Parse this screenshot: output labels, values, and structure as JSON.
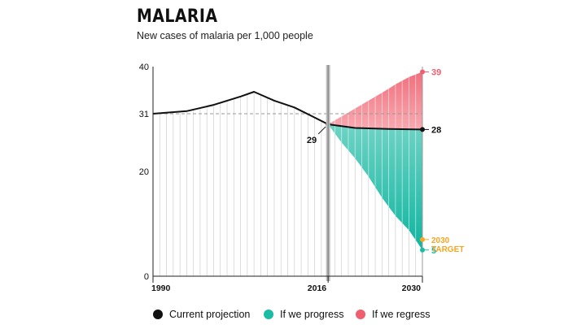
{
  "chart_data": {
    "type": "line",
    "title": "MALARIA",
    "subtitle": "New cases of malaria per 1,000 people",
    "x_ticks": [
      "1990",
      "2016",
      "2030"
    ],
    "y_ticks": [
      0,
      20,
      31,
      40
    ],
    "xlim": [
      1990,
      2030
    ],
    "ylim": [
      0,
      40
    ],
    "reference_line": 31,
    "series": [
      {
        "name": "Current projection",
        "color": "#111111",
        "points": [
          [
            1990,
            31
          ],
          [
            1995,
            31.5
          ],
          [
            1999,
            32.7
          ],
          [
            2003,
            34.3
          ],
          [
            2005,
            35.2
          ],
          [
            2008,
            33.5
          ],
          [
            2011,
            32.2
          ],
          [
            2016,
            29
          ],
          [
            2020,
            28.3
          ],
          [
            2025,
            28.1
          ],
          [
            2030,
            28
          ]
        ]
      },
      {
        "name": "If we progress",
        "color": "#1bbca6",
        "points": [
          [
            2016,
            29
          ],
          [
            2018,
            25.5
          ],
          [
            2020,
            22.5
          ],
          [
            2022,
            19
          ],
          [
            2024,
            15
          ],
          [
            2026,
            11.5
          ],
          [
            2028,
            8.8
          ],
          [
            2030,
            5
          ]
        ]
      },
      {
        "name": "If we regress",
        "color": "#ef5f6e",
        "points": [
          [
            2016,
            29
          ],
          [
            2018,
            30.5
          ],
          [
            2020,
            32
          ],
          [
            2022,
            33.5
          ],
          [
            2024,
            35
          ],
          [
            2026,
            36.6
          ],
          [
            2028,
            38
          ],
          [
            2030,
            39
          ]
        ]
      }
    ],
    "annotations": {
      "start_value": "29",
      "current_end": "28",
      "regress_end": "39",
      "progress_end": "5",
      "target_line1": "2030",
      "target_line2": "TARGET",
      "target_value": 7,
      "target_color": "#f5a623"
    },
    "legend_position": "bottom"
  }
}
